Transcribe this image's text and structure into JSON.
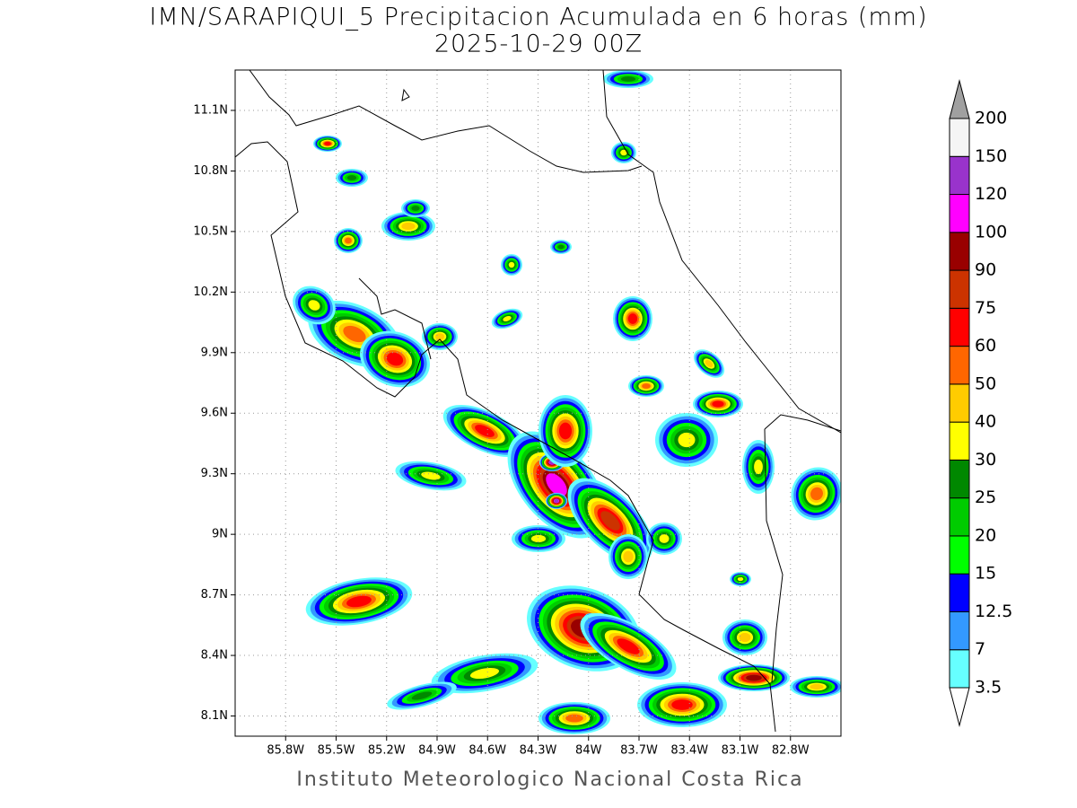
{
  "title": "IMN/SARAPIQUI_5 Precipitacion Acumulada en 6 horas (mm)",
  "subtitle": "2025-10-29 00Z",
  "footer": "Instituto Meteorologico Nacional Costa Rica",
  "map": {
    "lonlim": [
      -86.1,
      -82.5
    ],
    "latlim": [
      8.0,
      11.3
    ],
    "lonticks": [
      {
        "value": -85.8,
        "label": "85.8W"
      },
      {
        "value": -85.5,
        "label": "85.5W"
      },
      {
        "value": -85.2,
        "label": "85.2W"
      },
      {
        "value": -84.9,
        "label": "84.9W"
      },
      {
        "value": -84.6,
        "label": "84.6W"
      },
      {
        "value": -84.3,
        "label": "84.3W"
      },
      {
        "value": -84.0,
        "label": "84W"
      },
      {
        "value": -83.7,
        "label": "83.7W"
      },
      {
        "value": -83.4,
        "label": "83.4W"
      },
      {
        "value": -83.1,
        "label": "83.1W"
      },
      {
        "value": -82.8,
        "label": "82.8W"
      }
    ],
    "latticks": [
      {
        "value": 8.1,
        "label": "8.1N"
      },
      {
        "value": 8.4,
        "label": "8.4N"
      },
      {
        "value": 8.7,
        "label": "8.7N"
      },
      {
        "value": 9.0,
        "label": "9N"
      },
      {
        "value": 9.3,
        "label": "9.3N"
      },
      {
        "value": 9.6,
        "label": "9.6N"
      },
      {
        "value": 9.9,
        "label": "9.9N"
      },
      {
        "value": 10.2,
        "label": "10.2N"
      },
      {
        "value": 10.5,
        "label": "10.5N"
      },
      {
        "value": 10.8,
        "label": "10.8N"
      },
      {
        "value": 11.1,
        "label": "11.1N"
      }
    ],
    "grid": true
  },
  "colorbar": {
    "levels": [
      3.5,
      7,
      12.5,
      15,
      20,
      25,
      30,
      40,
      50,
      60,
      75,
      90,
      100,
      120,
      150,
      200
    ],
    "colors": [
      "#66ffff",
      "#3399ff",
      "#0000ff",
      "#00ff00",
      "#00cc00",
      "#008800",
      "#ffff00",
      "#ffcc00",
      "#ff6600",
      "#ff0000",
      "#cc3300",
      "#990000",
      "#ff00ff",
      "#9933cc",
      "#f5f5f5"
    ],
    "color_under": "#ffffff",
    "color_over": "#a0a0a0"
  }
}
